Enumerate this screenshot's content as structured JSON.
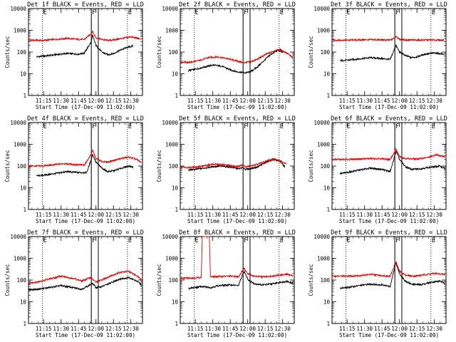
{
  "figure": {
    "ylabel": "Counts/sec",
    "xlabel": "Start Time (17-Dec-09 11:02:00)",
    "x_ticks": [
      "11:15",
      "11:30",
      "11:45",
      "12:00",
      "12:15",
      "12:30"
    ],
    "y_ticks": [
      "1",
      "10",
      "100",
      "1000",
      "10000"
    ],
    "colors": {
      "events": "#000000",
      "lld": "#e00000",
      "frame": "#000000"
    }
  },
  "chart_data": [
    {
      "type": "line",
      "title": "Det 1f BLACK = Events, RED = LLD",
      "ylabel": "Counts/sec",
      "xlabel": "Start Time (17-Dec-09 11:02:00)",
      "yscale": "log",
      "ylim": [
        1,
        10000
      ],
      "xlim": [
        "11:02",
        "12:40"
      ],
      "markers": [
        {
          "label": "E",
          "x": "11:14"
        },
        {
          "label": "F",
          "x": "11:56"
        },
        {
          "label": "E",
          "x": "12:27"
        }
      ],
      "vertical_solid": [
        "11:56",
        "12:02"
      ],
      "vertical_dotted": [
        "11:14",
        "11:56",
        "12:27"
      ],
      "series": [
        {
          "name": "Events",
          "x": [
            "11:09",
            "11:15",
            "11:25",
            "11:35",
            "11:45",
            "11:50",
            "11:56",
            "11:57",
            "12:00",
            "12:05",
            "12:10",
            "12:15",
            "12:22",
            "12:28",
            "12:32"
          ],
          "values": [
            60,
            65,
            75,
            85,
            80,
            90,
            300,
            600,
            200,
            100,
            75,
            85,
            130,
            170,
            190
          ]
        },
        {
          "name": "LLD",
          "x": [
            "11:02",
            "11:15",
            "11:25",
            "11:35",
            "11:45",
            "11:50",
            "11:56",
            "11:57",
            "12:00",
            "12:05",
            "12:10",
            "12:15",
            "12:22",
            "12:30",
            "12:38"
          ],
          "values": [
            350,
            340,
            380,
            420,
            380,
            380,
            700,
            900,
            450,
            380,
            340,
            360,
            420,
            500,
            400
          ]
        }
      ]
    },
    {
      "type": "line",
      "title": "Det 2f BLACK = Events, RED = LLD",
      "ylabel": "Counts/sec",
      "xlabel": "Start Time (17-Dec-09 11:02:00)",
      "yscale": "log",
      "ylim": [
        1,
        10000
      ],
      "xlim": [
        "11:02",
        "12:40"
      ],
      "markers": [
        {
          "label": "E",
          "x": "11:14"
        },
        {
          "label": "F",
          "x": "11:56"
        },
        {
          "label": "E",
          "x": "12:27"
        }
      ],
      "vertical_solid": [
        "11:56",
        "12:02"
      ],
      "vertical_dotted": [
        "11:14",
        "11:56",
        "12:27"
      ],
      "series": [
        {
          "name": "Events",
          "x": [
            "11:09",
            "11:15",
            "11:22",
            "11:30",
            "11:38",
            "11:45",
            "11:52",
            "11:58",
            "12:02",
            "12:08",
            "12:15",
            "12:20",
            "12:26",
            "12:30"
          ],
          "values": [
            14,
            16,
            20,
            25,
            22,
            15,
            12,
            11,
            12,
            20,
            45,
            80,
            120,
            100
          ]
        },
        {
          "name": "LLD",
          "x": [
            "11:02",
            "11:10",
            "11:18",
            "11:26",
            "11:34",
            "11:42",
            "11:50",
            "11:56",
            "12:02",
            "12:08",
            "12:15",
            "12:22",
            "12:28",
            "12:35",
            "12:39"
          ],
          "values": [
            35,
            33,
            40,
            55,
            60,
            50,
            40,
            32,
            35,
            45,
            75,
            110,
            130,
            80,
            50
          ]
        }
      ]
    },
    {
      "type": "line",
      "title": "Det 3f BLACK = Events, RED = LLD",
      "ylabel": "Counts/sec",
      "xlabel": "Start Time (17-Dec-09 11:02:00)",
      "yscale": "log",
      "ylim": [
        1,
        10000
      ],
      "xlim": [
        "11:02",
        "12:40"
      ],
      "markers": [
        {
          "label": "E",
          "x": "11:14"
        },
        {
          "label": "F",
          "x": "11:56"
        },
        {
          "label": "E",
          "x": "12:27"
        }
      ],
      "vertical_solid": [
        "11:56",
        "12:02"
      ],
      "vertical_dotted": [
        "11:14",
        "11:56",
        "12:27"
      ],
      "series": [
        {
          "name": "Events",
          "x": [
            "11:09",
            "11:15",
            "11:25",
            "11:35",
            "11:45",
            "11:52",
            "11:56",
            "11:57",
            "12:00",
            "12:05",
            "12:10",
            "12:15",
            "12:22",
            "12:30",
            "12:38"
          ],
          "values": [
            40,
            42,
            48,
            55,
            50,
            45,
            150,
            200,
            100,
            70,
            55,
            60,
            80,
            90,
            80
          ]
        },
        {
          "name": "LLD",
          "x": [
            "11:02",
            "11:15",
            "11:25",
            "11:35",
            "11:45",
            "11:52",
            "11:56",
            "11:57",
            "12:00",
            "12:05",
            "12:15",
            "12:25",
            "12:38"
          ],
          "values": [
            350,
            350,
            360,
            370,
            360,
            350,
            450,
            550,
            380,
            360,
            350,
            360,
            350
          ]
        }
      ]
    },
    {
      "type": "line",
      "title": "Det 4f BLACK = Events, RED = LLD",
      "ylabel": "Counts/sec",
      "xlabel": "Start Time (17-Dec-09 11:02:00)",
      "yscale": "log",
      "ylim": [
        1,
        10000
      ],
      "xlim": [
        "11:02",
        "12:40"
      ],
      "markers": [
        {
          "label": "E",
          "x": "11:14"
        },
        {
          "label": "F",
          "x": "11:56"
        },
        {
          "label": "E",
          "x": "12:27"
        }
      ],
      "vertical_solid": [
        "11:56",
        "12:02"
      ],
      "vertical_dotted": [
        "11:14",
        "11:56",
        "12:27"
      ],
      "series": [
        {
          "name": "Events",
          "x": [
            "11:09",
            "11:15",
            "11:25",
            "11:35",
            "11:45",
            "11:52",
            "11:56",
            "11:57",
            "12:00",
            "12:05",
            "12:10",
            "12:15",
            "12:22",
            "12:28",
            "12:32"
          ],
          "values": [
            35,
            38,
            45,
            55,
            50,
            50,
            200,
            350,
            150,
            80,
            55,
            60,
            80,
            100,
            90
          ]
        },
        {
          "name": "LLD",
          "x": [
            "11:02",
            "11:12",
            "11:22",
            "11:32",
            "11:42",
            "11:50",
            "11:56",
            "11:57",
            "12:00",
            "12:05",
            "12:10",
            "12:18",
            "12:28",
            "12:35",
            "12:39"
          ],
          "values": [
            100,
            100,
            110,
            130,
            115,
            110,
            350,
            550,
            220,
            160,
            150,
            200,
            260,
            200,
            140
          ]
        }
      ]
    },
    {
      "type": "line",
      "title": "Det 5f BLACK = Events, RED = LLD",
      "ylabel": "Counts/sec",
      "xlabel": "Start Time (17-Dec-09 11:02:00)",
      "yscale": "log",
      "ylim": [
        1,
        10000
      ],
      "xlim": [
        "11:02",
        "12:40"
      ],
      "markers": [
        {
          "label": "E",
          "x": "11:14"
        },
        {
          "label": "F",
          "x": "11:56"
        },
        {
          "label": "E",
          "x": "12:27"
        }
      ],
      "vertical_solid": [
        "11:56",
        "12:02"
      ],
      "vertical_dotted": [
        "11:14",
        "11:56",
        "12:27"
      ],
      "series": [
        {
          "name": "Events",
          "x": [
            "11:09",
            "11:15",
            "11:25",
            "11:35",
            "11:45",
            "11:52",
            "11:56",
            "11:58",
            "12:02",
            "12:08",
            "12:15",
            "12:22",
            "12:28",
            "12:32"
          ],
          "values": [
            65,
            70,
            85,
            100,
            90,
            75,
            85,
            70,
            75,
            90,
            140,
            200,
            160,
            90
          ]
        },
        {
          "name": "LLD",
          "x": [
            "11:02",
            "11:10",
            "11:20",
            "11:30",
            "11:40",
            "11:50",
            "11:56",
            "11:58",
            "12:02",
            "12:08",
            "12:15",
            "12:22",
            "12:28",
            "12:33"
          ],
          "values": [
            90,
            85,
            95,
            120,
            115,
            95,
            110,
            90,
            100,
            115,
            160,
            210,
            180,
            120
          ]
        }
      ]
    },
    {
      "type": "line",
      "title": "Det 6f BLACK = Events, RED = LLD",
      "ylabel": "Counts/sec",
      "xlabel": "Start Time (17-Dec-09 11:02:00)",
      "yscale": "log",
      "ylim": [
        1,
        10000
      ],
      "xlim": [
        "11:02",
        "12:40"
      ],
      "markers": [
        {
          "label": "E",
          "x": "11:14"
        },
        {
          "label": "F",
          "x": "11:56"
        },
        {
          "label": "E",
          "x": "12:27"
        }
      ],
      "vertical_solid": [
        "11:56",
        "12:02"
      ],
      "vertical_dotted": [
        "11:14",
        "11:56",
        "12:27"
      ],
      "series": [
        {
          "name": "Events",
          "x": [
            "11:09",
            "11:15",
            "11:25",
            "11:35",
            "11:45",
            "11:52",
            "11:56",
            "11:57",
            "12:00",
            "12:05",
            "12:10",
            "12:18",
            "12:28",
            "12:35",
            "12:39"
          ],
          "values": [
            45,
            50,
            65,
            80,
            70,
            55,
            300,
            500,
            200,
            95,
            70,
            75,
            90,
            100,
            75
          ]
        },
        {
          "name": "LLD",
          "x": [
            "11:02",
            "11:15",
            "11:25",
            "11:35",
            "11:45",
            "11:52",
            "11:56",
            "11:57",
            "12:00",
            "12:05",
            "12:15",
            "12:25",
            "12:32",
            "12:39"
          ],
          "values": [
            200,
            200,
            210,
            220,
            210,
            200,
            450,
            600,
            280,
            220,
            210,
            250,
            330,
            270
          ]
        }
      ]
    },
    {
      "type": "line",
      "title": "Det 7f BLACK = Events, RED = LLD",
      "ylabel": "Counts/sec",
      "xlabel": "Start Time (17-Dec-09 11:02:00)",
      "yscale": "log",
      "ylim": [
        1,
        10000
      ],
      "xlim": [
        "11:02",
        "12:40"
      ],
      "markers": [
        {
          "label": "E",
          "x": "11:14"
        },
        {
          "label": "F",
          "x": "11:56"
        },
        {
          "label": "E",
          "x": "12:27"
        }
      ],
      "vertical_solid": [
        "11:56",
        "12:02"
      ],
      "vertical_dotted": [
        "11:14",
        "11:56",
        "12:27"
      ],
      "series": [
        {
          "name": "Events",
          "x": [
            "11:02",
            "11:10",
            "11:20",
            "11:30",
            "11:40",
            "11:48",
            "11:55",
            "11:57",
            "12:00",
            "12:05",
            "12:12",
            "12:20",
            "12:28",
            "12:35",
            "12:39"
          ],
          "values": [
            35,
            38,
            45,
            55,
            45,
            38,
            60,
            70,
            45,
            50,
            70,
            110,
            130,
            90,
            60
          ]
        },
        {
          "name": "LLD",
          "x": [
            "11:02",
            "11:10",
            "11:20",
            "11:30",
            "11:40",
            "11:48",
            "11:55",
            "11:57",
            "12:00",
            "12:05",
            "12:12",
            "12:20",
            "12:28",
            "12:35",
            "12:39"
          ],
          "values": [
            70,
            80,
            110,
            150,
            120,
            90,
            130,
            110,
            80,
            100,
            150,
            220,
            250,
            160,
            110
          ]
        }
      ]
    },
    {
      "type": "line",
      "title": "Det 8f BLACK = Events, RED = LLD",
      "ylabel": "Counts/sec",
      "xlabel": "Start Time (17-Dec-09 11:02:00)",
      "yscale": "log",
      "ylim": [
        1,
        10000
      ],
      "xlim": [
        "11:02",
        "12:40"
      ],
      "markers": [
        {
          "label": "E",
          "x": "11:14"
        },
        {
          "label": "F",
          "x": "11:56"
        },
        {
          "label": "E",
          "x": "12:27"
        }
      ],
      "vertical_solid": [
        "11:56",
        "12:02"
      ],
      "vertical_dotted": [
        "11:14",
        "11:56",
        "12:27"
      ],
      "series": [
        {
          "name": "Events",
          "x": [
            "11:09",
            "11:15",
            "11:20",
            "11:24",
            "11:28",
            "11:35",
            "11:45",
            "11:52",
            "11:56",
            "11:57",
            "12:00",
            "12:05",
            "12:12",
            "12:20",
            "12:28",
            "12:34",
            "12:39"
          ],
          "values": [
            40,
            45,
            50,
            48,
            45,
            55,
            60,
            55,
            200,
            250,
            110,
            70,
            60,
            65,
            80,
            85,
            70
          ]
        },
        {
          "name": "LLD",
          "x": [
            "11:02",
            "11:12",
            "11:20",
            "11:21",
            "11:27",
            "11:28",
            "11:35",
            "11:45",
            "11:52",
            "11:56",
            "11:57",
            "12:00",
            "12:05",
            "12:12",
            "12:20",
            "12:28",
            "12:34",
            "12:39"
          ],
          "values": [
            120,
            125,
            130,
            10000,
            10000,
            140,
            145,
            150,
            140,
            300,
            350,
            200,
            150,
            140,
            150,
            170,
            180,
            160
          ]
        }
      ]
    },
    {
      "type": "line",
      "title": "Det 9f BLACK = Events, RED = LLD",
      "ylabel": "Counts/sec",
      "xlabel": "Start Time (17-Dec-09 11:02:00)",
      "yscale": "log",
      "ylim": [
        1,
        10000
      ],
      "xlim": [
        "11:02",
        "12:40"
      ],
      "markers": [
        {
          "label": "E",
          "x": "11:14"
        },
        {
          "label": "F",
          "x": "11:56"
        },
        {
          "label": "E",
          "x": "12:27"
        }
      ],
      "vertical_solid": [
        "11:56",
        "12:02"
      ],
      "vertical_dotted": [
        "11:14",
        "11:56",
        "12:27"
      ],
      "series": [
        {
          "name": "Events",
          "x": [
            "11:09",
            "11:15",
            "11:25",
            "11:35",
            "11:45",
            "11:52",
            "11:56",
            "11:57",
            "12:00",
            "12:05",
            "12:10",
            "12:18",
            "12:28",
            "12:35",
            "12:39"
          ],
          "values": [
            42,
            45,
            55,
            65,
            60,
            50,
            400,
            600,
            200,
            90,
            65,
            60,
            80,
            90,
            70
          ]
        },
        {
          "name": "LLD",
          "x": [
            "11:02",
            "11:15",
            "11:25",
            "11:35",
            "11:45",
            "11:52",
            "11:56",
            "11:57",
            "12:00",
            "12:05",
            "12:12",
            "12:20",
            "12:30",
            "12:39"
          ],
          "values": [
            150,
            150,
            160,
            180,
            160,
            150,
            500,
            700,
            250,
            170,
            150,
            170,
            200,
            180
          ]
        }
      ]
    }
  ]
}
